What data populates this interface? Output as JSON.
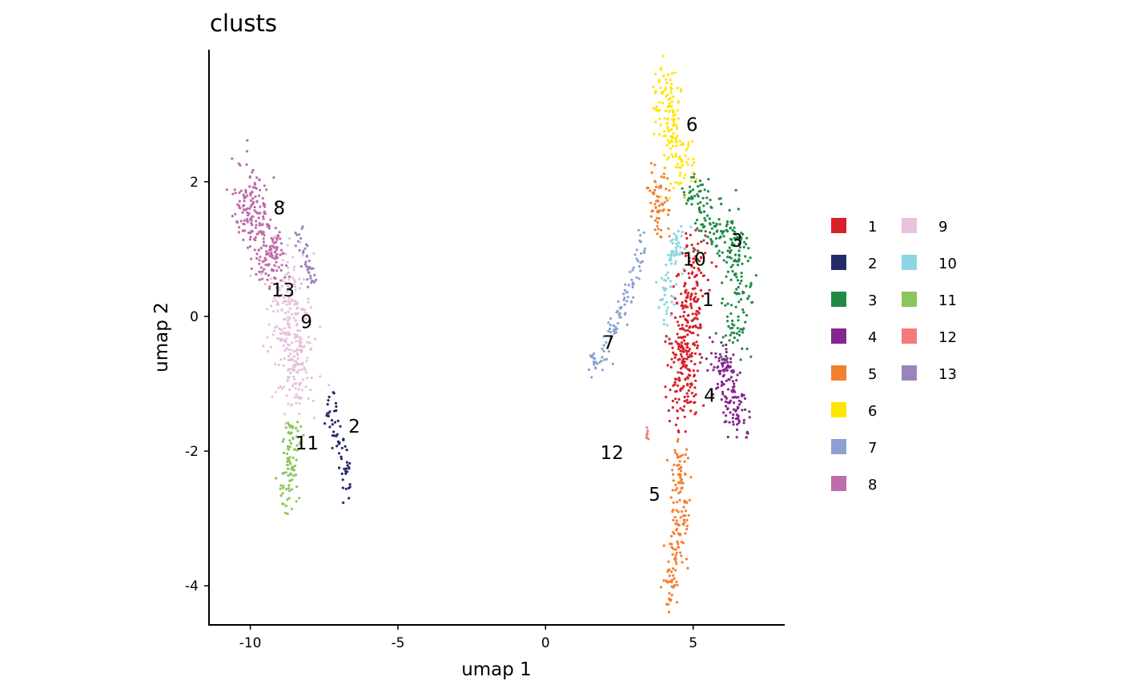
{
  "chart_data": {
    "type": "scatter",
    "title": "clusts",
    "xlabel": "umap 1",
    "ylabel": "umap 2",
    "xlim": [
      -11.4,
      8.1
    ],
    "ylim": [
      -4.58,
      3.96
    ],
    "xticks": [
      -10,
      -5,
      0,
      5
    ],
    "xtick_labels": [
      "-10",
      "-5",
      "0",
      "5"
    ],
    "yticks": [
      -4,
      -2,
      0,
      2
    ],
    "ytick_labels": [
      "-4",
      "-2",
      "0",
      "2"
    ],
    "grid": false,
    "legend_placement": "right",
    "clusters": [
      {
        "name": "1",
        "color": "#D7202A",
        "label_pos": [
          5.5,
          0.25
        ],
        "n": 320,
        "spread": 0.35,
        "spines": [
          [
            [
              5.0,
              1.0
            ],
            [
              4.9,
              0.0
            ],
            [
              4.6,
              -0.8
            ],
            [
              4.7,
              -1.4
            ]
          ]
        ]
      },
      {
        "name": "2",
        "color": "#252A6A",
        "label_pos": [
          -6.48,
          -1.63
        ],
        "n": 60,
        "spread": 0.15,
        "spines": [
          [
            [
              -7.3,
              -1.2
            ],
            [
              -7.1,
              -1.7
            ],
            [
              -6.6,
              -2.6
            ]
          ]
        ]
      },
      {
        "name": "3",
        "color": "#1F8A45",
        "label_pos": [
          6.48,
          1.13
        ],
        "n": 250,
        "spread": 0.33,
        "spines": [
          [
            [
              4.9,
              2.0
            ],
            [
              5.5,
              1.4
            ],
            [
              6.5,
              1.0
            ],
            [
              6.6,
              0.0
            ],
            [
              6.2,
              -0.4
            ]
          ]
        ]
      },
      {
        "name": "4",
        "color": "#87258E",
        "label_pos": [
          5.56,
          -1.17
        ],
        "n": 150,
        "spread": 0.3,
        "spines": [
          [
            [
              5.8,
              -0.5
            ],
            [
              6.3,
              -1.0
            ],
            [
              6.5,
              -1.6
            ]
          ]
        ]
      },
      {
        "name": "5",
        "color": "#F47F2E",
        "label_pos": [
          3.69,
          -2.64
        ],
        "n": 220,
        "spread": 0.22,
        "spines": [
          [
            [
              4.5,
              -2.0
            ],
            [
              4.6,
              -2.5
            ],
            [
              4.5,
              -3.2
            ],
            [
              4.2,
              -4.2
            ]
          ],
          [
            [
              3.8,
              2.1
            ],
            [
              3.9,
              1.2
            ]
          ]
        ]
      },
      {
        "name": "6",
        "color": "#FFE500",
        "label_pos": [
          4.96,
          2.85
        ],
        "n": 160,
        "spread": 0.28,
        "spines": [
          [
            [
              4.0,
              3.55
            ],
            [
              4.3,
              2.9
            ],
            [
              4.6,
              2.0
            ]
          ]
        ]
      },
      {
        "name": "7",
        "color": "#8BA1D3",
        "label_pos": [
          2.14,
          -0.39
        ],
        "n": 100,
        "spread": 0.15,
        "spines": [
          [
            [
              3.3,
              1.1
            ],
            [
              2.8,
              0.3
            ],
            [
              2.0,
              -0.5
            ],
            [
              1.6,
              -0.75
            ]
          ]
        ]
      },
      {
        "name": "8",
        "color": "#BE6CAC",
        "label_pos": [
          -9.02,
          1.61
        ],
        "n": 250,
        "spread": 0.38,
        "spines": [
          [
            [
              -10.0,
              2.1
            ],
            [
              -10.0,
              1.5
            ],
            [
              -9.3,
              1.0
            ],
            [
              -9.2,
              0.6
            ]
          ]
        ]
      },
      {
        "name": "9",
        "color": "#E6C2DD",
        "label_pos": [
          -8.1,
          -0.08
        ],
        "n": 280,
        "spread": 0.45,
        "spines": [
          [
            [
              -8.9,
              0.6
            ],
            [
              -8.6,
              -0.3
            ],
            [
              -8.4,
              -1.2
            ]
          ]
        ]
      },
      {
        "name": "10",
        "color": "#8DD5E2",
        "label_pos": [
          5.04,
          0.85
        ],
        "n": 80,
        "spread": 0.2,
        "spines": [
          [
            [
              4.6,
              1.3
            ],
            [
              4.1,
              0.5
            ],
            [
              4.0,
              0.0
            ]
          ]
        ]
      },
      {
        "name": "11",
        "color": "#8BC65A",
        "label_pos": [
          -8.08,
          -1.88
        ],
        "n": 90,
        "spread": 0.18,
        "spines": [
          [
            [
              -8.6,
              -1.6
            ],
            [
              -8.7,
              -2.2
            ],
            [
              -8.7,
              -2.9
            ]
          ]
        ]
      },
      {
        "name": "12",
        "color": "#F37B7C",
        "label_pos": [
          2.25,
          -2.02
        ],
        "n": 8,
        "spread": 0.03,
        "spines": [
          [
            [
              3.4,
              -1.65
            ],
            [
              3.45,
              -1.85
            ]
          ]
        ]
      },
      {
        "name": "13",
        "color": "#9B84BC",
        "label_pos": [
          -8.89,
          0.39
        ],
        "n": 40,
        "spread": 0.12,
        "spines": [
          [
            [
              -8.4,
              1.25
            ],
            [
              -7.9,
              0.55
            ]
          ]
        ]
      }
    ]
  }
}
